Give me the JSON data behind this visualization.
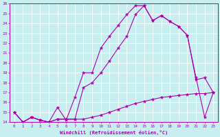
{
  "xlabel": "Windchill (Refroidissement éolien,°C)",
  "bg_color": "#c8eef0",
  "line_color": "#aa00aa",
  "grid_color": "#ffffff",
  "xlim": [
    -0.5,
    23.5
  ],
  "ylim": [
    14,
    26
  ],
  "curve1_x": [
    0,
    1,
    2,
    3,
    4,
    5,
    6,
    7,
    8,
    9,
    10,
    11,
    12,
    13,
    14,
    15,
    16,
    17,
    18,
    19,
    20,
    21,
    22,
    23
  ],
  "curve1_y": [
    15,
    14,
    14.5,
    14.2,
    14,
    15.5,
    14.2,
    16.5,
    19,
    19,
    21.5,
    22.7,
    23.8,
    24.9,
    25.8,
    25.8,
    24.3,
    24.8,
    24.2,
    23.7,
    22.8,
    18.5,
    14.5,
    17
  ],
  "curve2_x": [
    0,
    1,
    2,
    3,
    4,
    5,
    6,
    7,
    8,
    9,
    10,
    11,
    12,
    13,
    14,
    15,
    16,
    17,
    18,
    19,
    20,
    21,
    22,
    23
  ],
  "curve2_y": [
    15,
    14,
    14.5,
    14.2,
    14,
    14.3,
    14.3,
    14.3,
    17.5,
    18,
    19,
    20.2,
    21.5,
    22.7,
    24.9,
    25.8,
    24.3,
    24.8,
    24.2,
    23.7,
    22.8,
    18.3,
    18.5,
    17
  ],
  "curve3_x": [
    0,
    1,
    2,
    3,
    4,
    5,
    6,
    7,
    8,
    9,
    10,
    11,
    12,
    13,
    14,
    15,
    16,
    17,
    18,
    19,
    20,
    21,
    22,
    23
  ],
  "curve3_y": [
    15,
    14,
    14.5,
    14.2,
    14,
    14.3,
    14.3,
    14.3,
    14.3,
    14.5,
    14.7,
    15.0,
    15.3,
    15.6,
    15.9,
    16.1,
    16.3,
    16.5,
    16.6,
    16.7,
    16.8,
    16.9,
    16.9,
    17.0
  ],
  "yticks": [
    14,
    15,
    16,
    17,
    18,
    19,
    20,
    21,
    22,
    23,
    24,
    25,
    26
  ],
  "xticks": [
    0,
    1,
    2,
    3,
    4,
    5,
    6,
    7,
    8,
    9,
    10,
    11,
    12,
    13,
    14,
    15,
    16,
    17,
    18,
    19,
    20,
    21,
    22,
    23
  ]
}
